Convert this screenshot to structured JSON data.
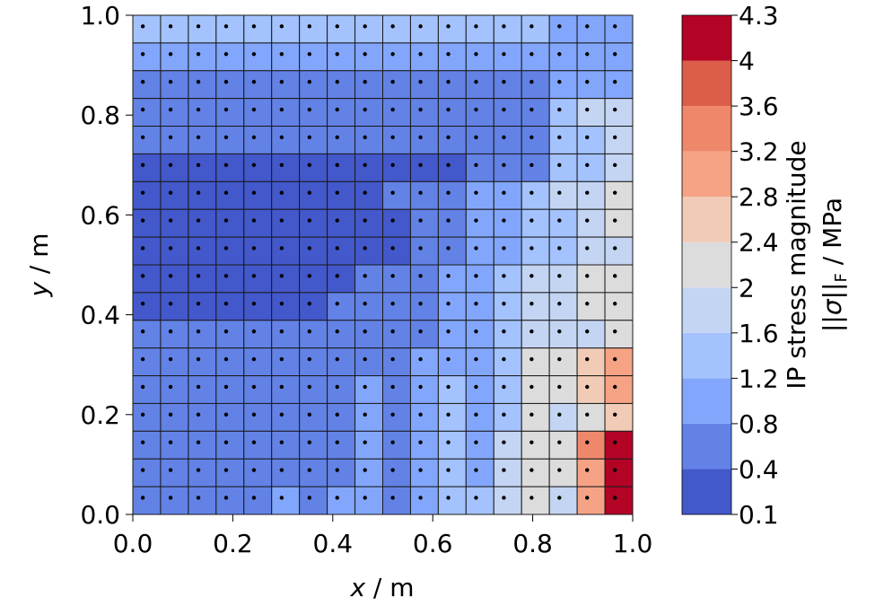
{
  "chart_data": {
    "type": "heatmap",
    "xlabel_var": "x",
    "xlabel_unit": " / m",
    "ylabel_var": "y",
    "ylabel_unit": " / m",
    "xlim": [
      0,
      1
    ],
    "ylim": [
      0,
      1
    ],
    "x_ticks": [
      "0.0",
      "0.2",
      "0.4",
      "0.6",
      "0.8",
      "1.0"
    ],
    "y_ticks": [
      "0.0",
      "0.2",
      "0.4",
      "0.6",
      "0.8",
      "1.0"
    ],
    "grid_size": [
      18,
      18
    ],
    "mesh_nodes_shown": true,
    "colorbar": {
      "label_line1": "IP stress magnitude",
      "label_line2": "||σ||F / MPa",
      "label_line2_parts": {
        "pre": "||",
        "sym": "σ",
        "mid": "||",
        "sub": "F",
        "post": " / MPa"
      },
      "levels": [
        "0.1",
        "0.4",
        "0.8",
        "1.2",
        "1.6",
        "2",
        "2.4",
        "2.8",
        "3.2",
        "3.6",
        "4",
        "4.3"
      ],
      "colors": [
        "#4358cb",
        "#6282e6",
        "#82a6fb",
        "#a3c2fe",
        "#c4d5f3",
        "#dddcdc",
        "#f2cbb7",
        "#f6a385",
        "#ef886b",
        "#dc5d4a",
        "#b40426"
      ]
    },
    "z_row_order": "top (y=1) to bottom (y=0)",
    "z": [
      [
        1.4,
        1.4,
        1.4,
        1.4,
        1.4,
        1.4,
        1.4,
        1.4,
        1.4,
        1.4,
        1.4,
        1.4,
        1.4,
        1.4,
        1.4,
        1.0,
        1.0,
        1.0
      ],
      [
        1.0,
        1.0,
        1.0,
        1.0,
        1.0,
        1.0,
        1.0,
        1.0,
        1.0,
        1.0,
        1.0,
        1.0,
        1.0,
        1.0,
        1.0,
        1.0,
        1.0,
        1.0
      ],
      [
        0.6,
        0.6,
        0.6,
        0.6,
        0.6,
        0.6,
        0.6,
        0.6,
        0.6,
        0.6,
        0.6,
        0.6,
        0.6,
        0.6,
        0.6,
        1.0,
        1.0,
        1.0
      ],
      [
        0.6,
        0.6,
        0.6,
        0.6,
        0.6,
        0.6,
        0.6,
        0.6,
        0.6,
        0.6,
        0.6,
        0.6,
        0.6,
        0.6,
        0.6,
        1.4,
        1.8,
        1.8
      ],
      [
        0.6,
        0.6,
        0.6,
        0.6,
        0.6,
        0.6,
        0.6,
        0.6,
        0.6,
        0.6,
        0.6,
        0.6,
        0.6,
        0.6,
        0.6,
        1.4,
        1.4,
        1.8
      ],
      [
        0.25,
        0.25,
        0.25,
        0.25,
        0.25,
        0.25,
        0.25,
        0.25,
        0.25,
        0.25,
        0.25,
        0.25,
        0.6,
        0.6,
        0.6,
        1.4,
        1.4,
        1.8
      ],
      [
        0.25,
        0.25,
        0.25,
        0.25,
        0.25,
        0.25,
        0.25,
        0.25,
        0.25,
        0.6,
        0.6,
        0.6,
        1.0,
        1.0,
        1.4,
        1.8,
        1.8,
        2.2
      ],
      [
        0.25,
        0.25,
        0.25,
        0.25,
        0.25,
        0.25,
        0.25,
        0.25,
        0.25,
        0.25,
        0.6,
        0.6,
        1.0,
        1.0,
        1.4,
        1.4,
        1.8,
        2.2
      ],
      [
        0.25,
        0.25,
        0.25,
        0.25,
        0.25,
        0.25,
        0.25,
        0.25,
        0.25,
        0.25,
        0.6,
        0.6,
        1.0,
        1.0,
        1.4,
        1.4,
        1.8,
        1.8
      ],
      [
        0.25,
        0.25,
        0.25,
        0.25,
        0.25,
        0.25,
        0.25,
        0.25,
        0.6,
        0.6,
        0.6,
        1.0,
        1.0,
        1.4,
        1.8,
        1.8,
        2.2,
        2.2
      ],
      [
        0.25,
        0.25,
        0.25,
        0.25,
        0.25,
        0.25,
        0.25,
        0.6,
        0.6,
        0.6,
        0.6,
        1.0,
        1.0,
        1.4,
        1.8,
        1.8,
        2.2,
        2.2
      ],
      [
        0.6,
        0.6,
        0.6,
        0.6,
        0.6,
        0.6,
        0.6,
        0.6,
        0.6,
        0.6,
        0.6,
        1.0,
        1.0,
        1.4,
        1.8,
        1.8,
        1.8,
        2.2
      ],
      [
        0.6,
        0.6,
        0.6,
        0.6,
        0.6,
        0.6,
        0.6,
        0.6,
        0.6,
        0.6,
        1.0,
        1.0,
        1.0,
        1.4,
        2.2,
        2.2,
        2.6,
        3.0
      ],
      [
        0.6,
        0.6,
        0.6,
        0.6,
        0.6,
        0.6,
        0.6,
        0.6,
        1.0,
        0.6,
        1.0,
        1.4,
        1.0,
        1.4,
        2.2,
        2.2,
        2.6,
        3.0
      ],
      [
        0.6,
        0.6,
        0.6,
        0.6,
        0.6,
        0.6,
        0.6,
        0.6,
        1.0,
        0.6,
        1.0,
        1.4,
        1.0,
        1.4,
        2.2,
        1.8,
        2.2,
        2.6
      ],
      [
        0.6,
        0.6,
        0.6,
        0.6,
        0.6,
        0.6,
        0.6,
        0.6,
        1.0,
        0.6,
        1.0,
        1.4,
        1.0,
        1.8,
        2.2,
        2.2,
        3.4,
        4.15
      ],
      [
        0.6,
        0.6,
        0.6,
        0.6,
        0.6,
        0.6,
        0.6,
        0.6,
        1.0,
        0.6,
        1.0,
        1.4,
        1.0,
        1.8,
        2.2,
        2.2,
        3.0,
        4.15
      ],
      [
        0.6,
        0.6,
        0.6,
        0.6,
        0.6,
        1.0,
        0.6,
        1.0,
        1.0,
        0.6,
        1.0,
        1.4,
        1.4,
        1.8,
        2.2,
        1.8,
        3.0,
        4.15
      ]
    ]
  }
}
